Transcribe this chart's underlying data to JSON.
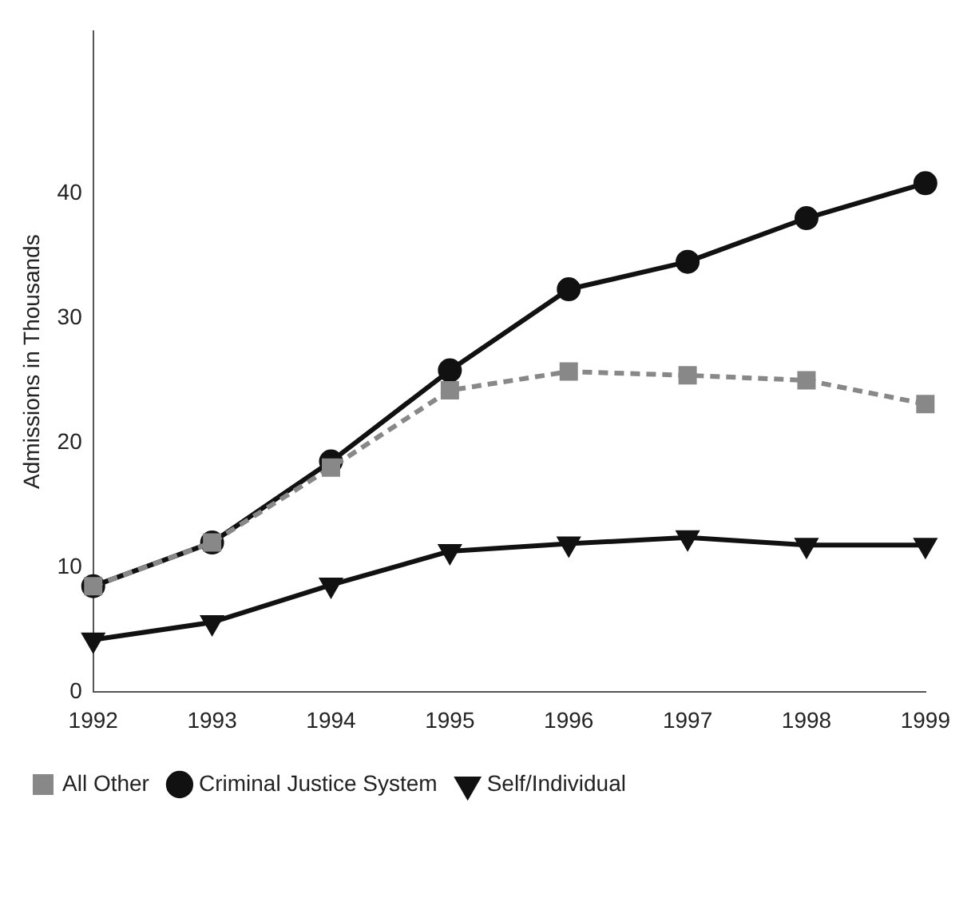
{
  "chart_data": {
    "type": "line",
    "ylabel": "Admissions in Thousands",
    "categories": [
      "1992",
      "1993",
      "1994",
      "1995",
      "1996",
      "1997",
      "1998",
      "1999"
    ],
    "series": [
      {
        "name": "Criminal Justice System",
        "color": "#111111",
        "marker": "circle",
        "line_style": "solid",
        "values": [
          8.5,
          12,
          18.5,
          25.8,
          32.3,
          34.5,
          38,
          40.8
        ]
      },
      {
        "name": "All Other",
        "color": "#888888",
        "marker": "square",
        "line_style": "dashed",
        "values": [
          8.5,
          12,
          18,
          24.2,
          25.7,
          25.4,
          25,
          23.1
        ]
      },
      {
        "name": "Self/Individual",
        "color": "#111111",
        "marker": "triangle",
        "line_style": "solid",
        "values": [
          4.2,
          5.6,
          8.6,
          11.3,
          11.9,
          12.4,
          11.8,
          11.8
        ]
      }
    ],
    "ylim": [
      0,
      53
    ],
    "yticks": [
      0,
      10,
      20,
      30,
      40
    ],
    "grid": false,
    "legend": "bottom"
  }
}
